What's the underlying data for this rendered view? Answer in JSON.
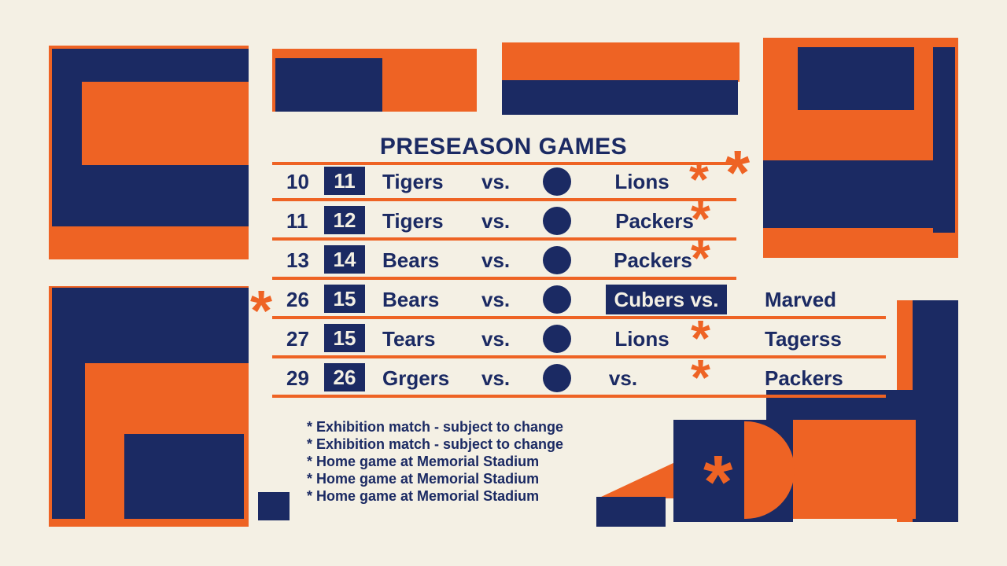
{
  "colors": {
    "background": "#f4f0e4",
    "orange": "#ee6324",
    "navy": "#1b2a63"
  },
  "title": "PRESEASON GAMES",
  "games": [
    {
      "n1": "10",
      "n2": "11",
      "home": "Tigers",
      "vs": "vs.",
      "away": "Lions",
      "extra": ""
    },
    {
      "n1": "11",
      "n2": "12",
      "home": "Tigers",
      "vs": "vs.",
      "away": "Packers",
      "extra": ""
    },
    {
      "n1": "13",
      "n2": "14",
      "home": "Bears",
      "vs": "vs.",
      "away": "Packers",
      "extra": ""
    },
    {
      "n1": "26",
      "n2": "15",
      "home": "Bears",
      "vs": "vs.",
      "away": "Cubers vs.",
      "extra": "Marved"
    },
    {
      "n1": "27",
      "n2": "15",
      "home": "Tears",
      "vs": "vs.",
      "away": "Lions",
      "extra": "Tagerss"
    },
    {
      "n1": "29",
      "n2": "26",
      "home": "Grgers",
      "vs": "vs.",
      "away": "vs.",
      "extra": "Packers"
    }
  ],
  "notes": [
    "* Exhibition match - subject to change",
    "* Exhibition match - subject to change",
    "* Home game at Memorial Stadium",
    "* Home game at Memorial Stadium",
    "* Home game at Memorial Stadium"
  ],
  "star_glyph": "*",
  "icons": [
    "asterisk-icon",
    "dot-icon"
  ]
}
